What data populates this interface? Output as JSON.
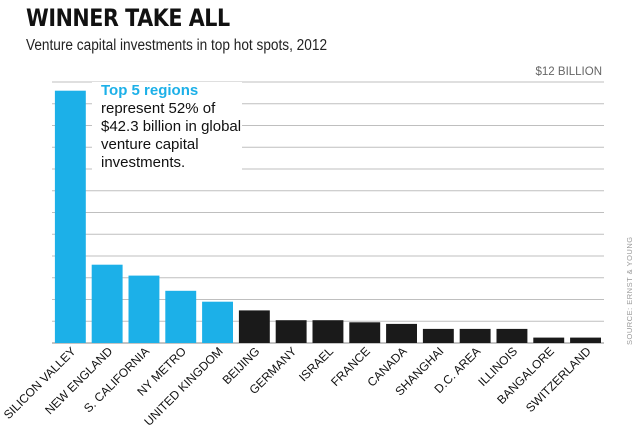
{
  "title": "WINNER TAKE ALL",
  "subtitle": "Venture capital investments in top hot spots, 2012",
  "source": "SOURCE: ERNST & YOUNG",
  "colors": {
    "highlight": "#1cb0e8",
    "other": "#1a1a1a",
    "grid": "#bfbfbf"
  },
  "chart_data": {
    "type": "bar",
    "title": "WINNER TAKE ALL",
    "subtitle": "Venture capital investments in top hot spots, 2012",
    "categories": [
      "SILICON VALLEY",
      "NEW ENGLAND",
      "S. CALIFORNIA",
      "NY METRO",
      "UNITED KINGDOM",
      "BEIJING",
      "GERMANY",
      "ISRAEL",
      "FRANCE",
      "CANADA",
      "SHANGHAI",
      "D.C. AREA",
      "ILLINOIS",
      "BANGALORE",
      "SWITZERLAND"
    ],
    "values": [
      11.6,
      3.6,
      3.1,
      2.4,
      1.9,
      1.5,
      1.05,
      1.05,
      0.95,
      0.88,
      0.65,
      0.65,
      0.65,
      0.25,
      0.25
    ],
    "highlighted": [
      true,
      true,
      true,
      true,
      true,
      false,
      false,
      false,
      false,
      false,
      false,
      false,
      false,
      false,
      false
    ],
    "ylim": [
      0,
      12
    ],
    "ymax_label": "$12 BILLION",
    "gridlines": true,
    "annotation": {
      "highlight": "Top 5 regions",
      "lines": [
        "represent 52% of",
        "$42.3 billion in global",
        "venture capital",
        "investments."
      ]
    }
  }
}
